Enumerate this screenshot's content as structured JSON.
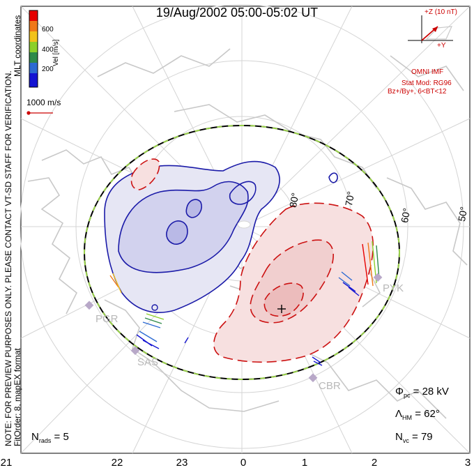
{
  "title": "19/Aug/2002 05:00-05:02 UT",
  "colorbar": {
    "label": "Vel [m/s]",
    "ticks": [
      "600",
      "400",
      "200"
    ],
    "colors": [
      "#e60000",
      "#f07818",
      "#f2c21a",
      "#8cd02a",
      "#2e8a4a",
      "#2c6ad2",
      "#1414d2"
    ]
  },
  "coordinates_label": "MLT coordinates",
  "vector_scale": "1000 m/s",
  "preview_note": "NOTE: FOR PREVIEW PURPOSES ONLY. PLEASE CONTACT VT-SD STAFF FOR VERIFICATION.",
  "fit_order": "FitOrder: 8, mapEX format",
  "imf": {
    "axis_z": "+Z (10 nT)",
    "axis_y": "+Y",
    "source": "OMNI IMF",
    "model_line1": "Stat Mod: RG96",
    "model_line2": "Bz+/By+, 6<BT<12"
  },
  "latitude_labels": [
    "80°",
    "70°",
    "60°",
    "50°"
  ],
  "stations": [
    "PGR",
    "SAS",
    "PYK",
    "CBR"
  ],
  "stats": {
    "phi_pc": "= 28 kV",
    "lambda_hm": "= 62°",
    "n_vc": "= 79",
    "n_rads": "= 5"
  },
  "mlt_labels": [
    "21",
    "22",
    "23",
    "0",
    "1",
    "2",
    "3"
  ],
  "colors": {
    "dusk_cell": "#1a1aa8",
    "dawn_cell": "#cc1111",
    "hmb_circle": "#000000",
    "hmb_dash": "#9ad24a",
    "coastline": "#c8c8c8",
    "grid": "#d4d4d4",
    "imf_vector": "#cc0000"
  }
}
